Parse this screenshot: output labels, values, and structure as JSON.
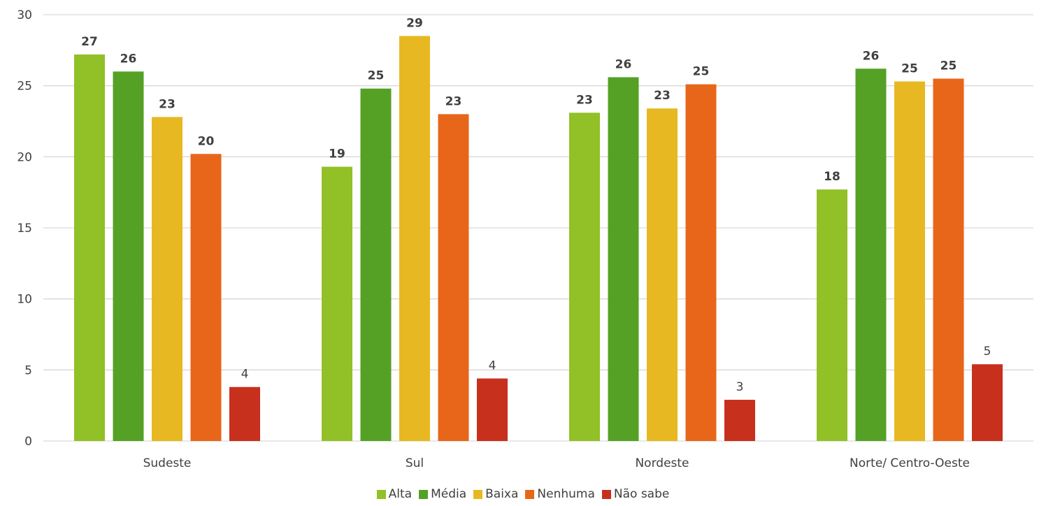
{
  "chart_data": {
    "type": "bar",
    "categories": [
      "Sudeste",
      "Sul",
      "Nordeste",
      "Norte/ Centro-Oeste"
    ],
    "series": [
      {
        "name": "Alta",
        "color": "#92c027",
        "values": [
          27.2,
          19.3,
          23.1,
          17.7
        ],
        "labels": [
          "27",
          "19",
          "23",
          "18"
        ]
      },
      {
        "name": "Média",
        "color": "#55a126",
        "values": [
          26.0,
          24.8,
          25.6,
          26.2
        ],
        "labels": [
          "26",
          "25",
          "26",
          "26"
        ]
      },
      {
        "name": "Baixa",
        "color": "#e7b821",
        "values": [
          22.8,
          28.5,
          23.4,
          25.3
        ],
        "labels": [
          "23",
          "29",
          "23",
          "25"
        ]
      },
      {
        "name": "Nenhuma",
        "color": "#e8661a",
        "values": [
          20.2,
          23.0,
          25.1,
          25.5
        ],
        "labels": [
          "20",
          "23",
          "25",
          "25"
        ]
      },
      {
        "name": "Não sabe",
        "color": "#c7301c",
        "values": [
          3.8,
          4.4,
          2.9,
          5.4
        ],
        "labels": [
          "4",
          "4",
          "3",
          "5"
        ]
      }
    ],
    "ylim": [
      0,
      30
    ],
    "yticks": [
      "0",
      "5",
      "10",
      "15",
      "20",
      "25",
      "30"
    ],
    "grid": true,
    "legend_position": "bottom"
  }
}
